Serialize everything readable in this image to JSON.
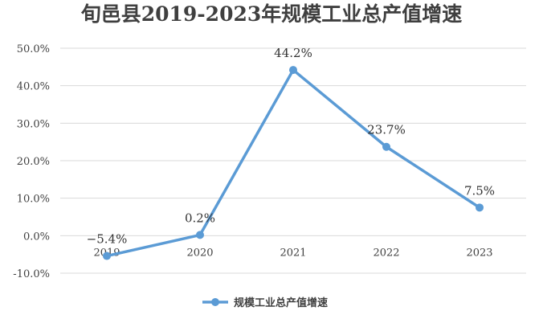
{
  "chart_data": {
    "type": "line",
    "title": "旬邑县2019-2023年规模工业总产值增速",
    "categories": [
      "2019",
      "2020",
      "2021",
      "2022",
      "2023"
    ],
    "series": [
      {
        "name": "规模工业总产值增速",
        "values": [
          -5.4,
          0.2,
          44.2,
          23.7,
          7.5
        ],
        "data_labels": [
          "−5.4%",
          "0.2%",
          "44.2%",
          "23.7%",
          "7.5%"
        ]
      }
    ],
    "y_ticks": [
      "50.0%",
      "40.0%",
      "30.0%",
      "20.0%",
      "10.0%",
      "0.0%",
      "-10.0%"
    ],
    "ylim": [
      -10,
      50
    ],
    "grid": true,
    "legend_position": "bottom",
    "colors": {
      "series": "#5b9bd5",
      "grid": "#d9d9d9",
      "text": "#404040"
    }
  }
}
